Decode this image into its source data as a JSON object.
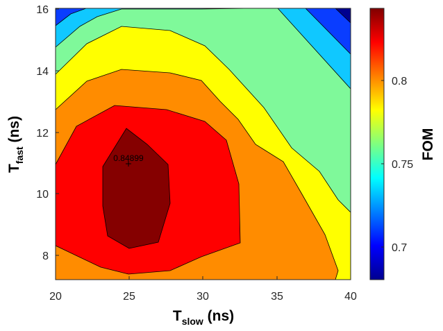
{
  "chart_data": {
    "type": "contour",
    "xlabel": {
      "base": "T",
      "sub": "slow",
      "unit": " (ns)"
    },
    "ylabel": {
      "base": "T",
      "sub": "fast",
      "unit": " (ns)"
    },
    "colorbar_label": "FOM",
    "xlim": [
      20,
      40
    ],
    "ylim": [
      7.25,
      16
    ],
    "x_ticks": [
      "20",
      "25",
      "30",
      "35",
      "40"
    ],
    "y_ticks": [
      "8",
      "10",
      "12",
      "14",
      "16"
    ],
    "colorbar_ticks": [
      "0.7",
      "0.75",
      "0.8"
    ],
    "colorbar_range": [
      0.68,
      0.85
    ],
    "colormap": "jet",
    "grid": false,
    "levels": [
      {
        "min_fom": 0.68,
        "color": "#00008f",
        "name": "level-0"
      },
      {
        "min_fom": 0.7,
        "color": "#0a3dff",
        "name": "level-1"
      },
      {
        "min_fom": 0.72,
        "color": "#10c8ff",
        "name": "level-2"
      },
      {
        "min_fom": 0.74,
        "color": "#7ff99a",
        "name": "level-3"
      },
      {
        "min_fom": 0.76,
        "color": "#ffff00",
        "name": "level-4"
      },
      {
        "min_fom": 0.79,
        "color": "#ff8c00",
        "name": "level-5"
      },
      {
        "min_fom": 0.82,
        "color": "#ff0000",
        "name": "level-6"
      },
      {
        "min_fom": 0.84,
        "color": "#850000",
        "name": "level-7"
      }
    ],
    "peak": {
      "x": 25,
      "y": 11,
      "label": "0.84899"
    }
  }
}
